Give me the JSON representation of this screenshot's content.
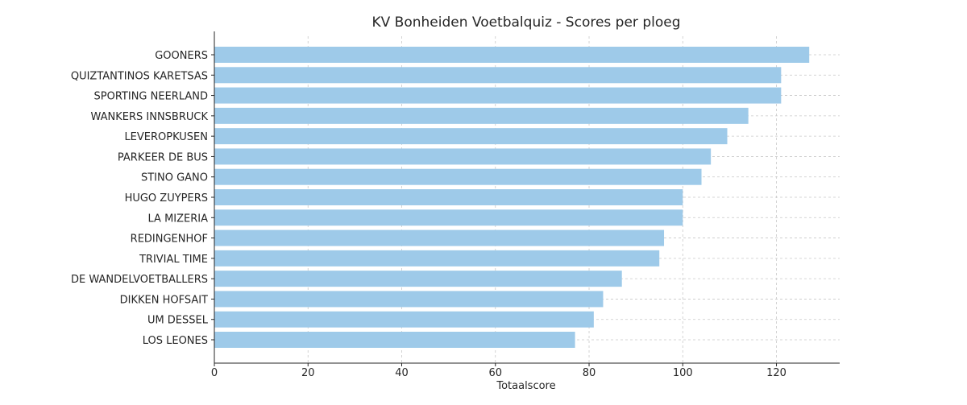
{
  "chart_data": {
    "type": "bar",
    "orientation": "horizontal",
    "title": "KV Bonheiden Voetbalquiz - Scores per ploeg",
    "xlabel": "Totaalscore",
    "ylabel": "",
    "categories": [
      "GOONERS",
      "QUIZTANTINOS KARETSAS",
      "SPORTING NEERLAND",
      "WANKERS INNSBRUCK",
      "LEVEROPKUSEN",
      "PARKEER DE BUS",
      "STINO GANO",
      "HUGO ZUYPERS",
      "LA MIZERIA",
      "REDINGENHOF",
      "TRIVIAL TIME",
      "DE WANDELVOETBALLERS",
      "DIKKEN HOFSAIT",
      "UM DESSEL",
      "LOS LEONES"
    ],
    "values": [
      127,
      121,
      121,
      114,
      109.5,
      106,
      104,
      100,
      100,
      96,
      95,
      87,
      83,
      81,
      77
    ],
    "xlim": [
      0,
      133.5
    ],
    "xticks": [
      "0",
      "20",
      "40",
      "60",
      "80",
      "100",
      "120"
    ],
    "grid": true,
    "bar_color": "#9ecae9"
  }
}
